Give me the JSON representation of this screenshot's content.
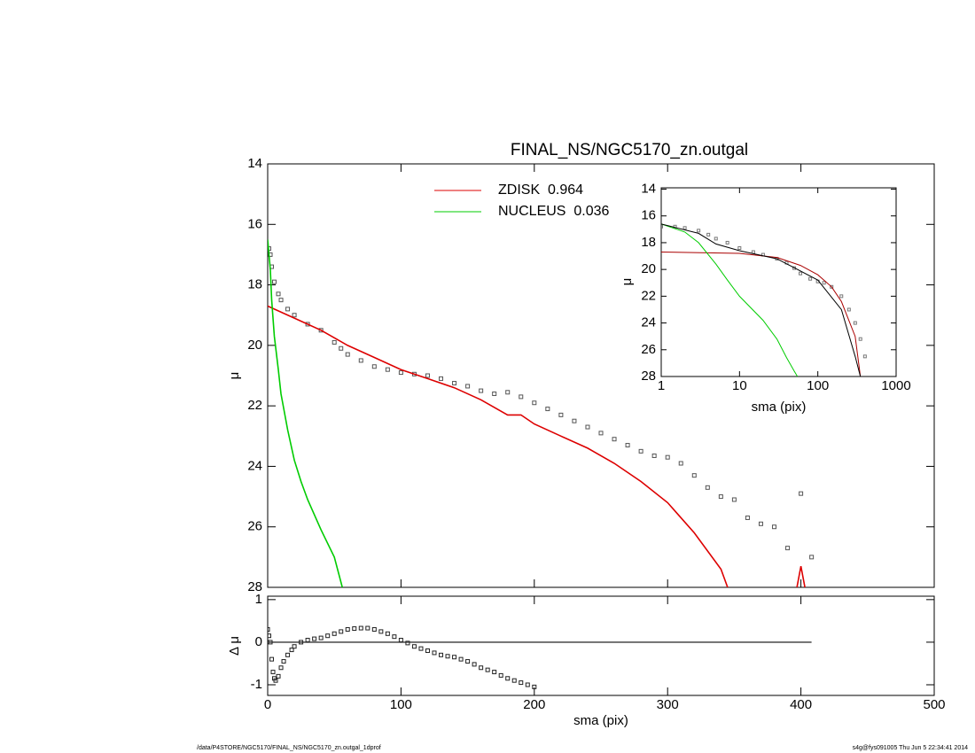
{
  "chart_data": [
    {
      "type": "scatter",
      "title": "FINAL_NS/NGC5170_zn.outgal",
      "y_label": "μ",
      "xlim": [
        0,
        500
      ],
      "ylim": [
        14,
        28
      ],
      "invert_y": true,
      "xticks": [
        0,
        100,
        200,
        300,
        400,
        500
      ],
      "yticks": [
        14,
        16,
        18,
        20,
        22,
        24,
        26,
        28
      ],
      "legend": "upper center",
      "series": [
        {
          "style": "scatter",
          "color": "#555555",
          "x": [
            1,
            2,
            3,
            5,
            8,
            10,
            15,
            20,
            30,
            40,
            50,
            55,
            60,
            70,
            80,
            90,
            100,
            110,
            120,
            130,
            140,
            150,
            160,
            170,
            180,
            190,
            200,
            210,
            220,
            230,
            240,
            250,
            260,
            270,
            280,
            290,
            300,
            310,
            320,
            330,
            340,
            350,
            360,
            370,
            380,
            390,
            400,
            408
          ],
          "values": [
            16.8,
            17.0,
            17.4,
            17.9,
            18.3,
            18.5,
            18.8,
            19.0,
            19.3,
            19.5,
            19.9,
            20.1,
            20.3,
            20.5,
            20.7,
            20.8,
            20.9,
            20.95,
            21.0,
            21.1,
            21.25,
            21.35,
            21.5,
            21.6,
            21.55,
            21.7,
            21.9,
            22.1,
            22.3,
            22.5,
            22.7,
            22.9,
            23.1,
            23.3,
            23.5,
            23.65,
            23.7,
            23.9,
            24.3,
            24.7,
            25.0,
            25.1,
            25.7,
            25.9,
            26.0,
            26.7,
            24.9,
            27.0
          ]
        },
        {
          "style": "line",
          "name": "ZDISK  0.964",
          "color": "#dd0000",
          "x": [
            0,
            20,
            40,
            60,
            80,
            100,
            120,
            140,
            160,
            180,
            190,
            200,
            220,
            240,
            260,
            280,
            300,
            320,
            340,
            345,
            null,
            397,
            400,
            403
          ],
          "values": [
            18.7,
            19.1,
            19.5,
            20.0,
            20.4,
            20.8,
            21.1,
            21.4,
            21.8,
            22.3,
            22.3,
            22.6,
            23.0,
            23.4,
            23.9,
            24.5,
            25.2,
            26.2,
            27.4,
            28,
            null,
            28,
            27.3,
            28
          ]
        },
        {
          "style": "line",
          "name": "NUCLEUS  0.036",
          "color": "#00cc00",
          "x": [
            0,
            2,
            3,
            5,
            8,
            10,
            15,
            20,
            25,
            30,
            40,
            50,
            56
          ],
          "values": [
            16.5,
            17.5,
            18.5,
            19.7,
            20.8,
            21.6,
            22.8,
            23.8,
            24.5,
            25.1,
            26.1,
            27.0,
            28
          ]
        }
      ]
    },
    {
      "type": "scatter",
      "x_label": "sma (pix)",
      "y_label": "Δ μ",
      "xlim": [
        0,
        500
      ],
      "ylim": [
        -1.25,
        1.08
      ],
      "xticks": [
        0,
        100,
        200,
        300,
        400,
        500
      ],
      "yticks": [
        -1,
        0,
        1
      ],
      "series": [
        {
          "style": "line",
          "color": "#555555",
          "x": [
            0,
            408
          ],
          "values": [
            0,
            0
          ]
        },
        {
          "style": "scatter",
          "color": "#222222",
          "x": [
            0,
            1,
            2,
            3,
            4,
            5,
            6,
            8,
            10,
            12,
            15,
            18,
            20,
            25,
            30,
            35,
            40,
            45,
            50,
            55,
            60,
            65,
            70,
            75,
            80,
            85,
            90,
            95,
            100,
            105,
            110,
            115,
            120,
            125,
            130,
            135,
            140,
            145,
            150,
            155,
            160,
            165,
            170,
            175,
            180,
            185,
            190,
            195,
            200
          ],
          "values": [
            0.3,
            0.15,
            0,
            -0.4,
            -0.7,
            -0.85,
            -0.9,
            -0.8,
            -0.6,
            -0.45,
            -0.3,
            -0.18,
            -0.1,
            0,
            0.05,
            0.08,
            0.1,
            0.15,
            0.2,
            0.25,
            0.3,
            0.32,
            0.33,
            0.33,
            0.3,
            0.25,
            0.2,
            0.13,
            0.05,
            -0.02,
            -0.1,
            -0.15,
            -0.2,
            -0.25,
            -0.3,
            -0.33,
            -0.35,
            -0.4,
            -0.45,
            -0.52,
            -0.6,
            -0.65,
            -0.7,
            -0.78,
            -0.85,
            -0.9,
            -0.95,
            -1.0,
            -1.05
          ]
        }
      ]
    },
    {
      "type": "scatter",
      "x_label": "sma (pix)",
      "y_label": "μ",
      "log_x": true,
      "xlim": [
        1,
        1000
      ],
      "ylim": [
        13.9,
        28
      ],
      "invert_y": true,
      "xticks": [
        1,
        10,
        100,
        1000
      ],
      "yticks": [
        14,
        16,
        18,
        20,
        22,
        24,
        26,
        28
      ],
      "series": [
        {
          "style": "scatter",
          "color": "#777777",
          "x": [
            1,
            1.5,
            2,
            3,
            4,
            5,
            7,
            10,
            15,
            20,
            30,
            40,
            50,
            60,
            80,
            100,
            120,
            150,
            200,
            250,
            300,
            350,
            400
          ],
          "values": [
            16.8,
            16.8,
            16.9,
            17.1,
            17.4,
            17.7,
            18.0,
            18.4,
            18.7,
            18.9,
            19.2,
            19.5,
            19.9,
            20.3,
            20.7,
            20.9,
            21.0,
            21.3,
            22.0,
            23.0,
            24.0,
            25.2,
            26.5
          ]
        },
        {
          "style": "line",
          "color": "#aa0000",
          "x": [
            1,
            10,
            30,
            60,
            100,
            150,
            200,
            300,
            350
          ],
          "values": [
            18.7,
            18.8,
            19.1,
            19.7,
            20.4,
            21.3,
            22.4,
            25.0,
            28
          ]
        },
        {
          "style": "line",
          "color": "#00cc00",
          "x": [
            1,
            2,
            3,
            5,
            7,
            10,
            20,
            30,
            40,
            50,
            55
          ],
          "values": [
            16.6,
            17.2,
            18.0,
            19.6,
            20.8,
            22.0,
            23.8,
            25.2,
            26.6,
            27.6,
            28
          ]
        },
        {
          "style": "line",
          "color": "#000000",
          "x": [
            1,
            3,
            5,
            10,
            30,
            100,
            200,
            300,
            350
          ],
          "values": [
            16.6,
            17.3,
            18.1,
            18.6,
            19.2,
            20.8,
            23.0,
            26.5,
            28
          ]
        }
      ]
    }
  ],
  "footer": {
    "path": "/data/P4STORE/NGC5170/FINAL_NS/NGC5170_zn.outgal_1dprof",
    "stamp": "s4g@fys091005  Thu Jun  5 22:34:41 2014"
  }
}
